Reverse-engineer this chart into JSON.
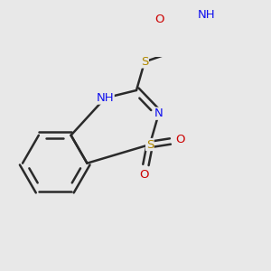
{
  "background": "#e8e8e8",
  "bond_color": "#2a2a2a",
  "bond_lw": 1.8,
  "atom_colors": {
    "N": "#1010ee",
    "O": "#cc0000",
    "S": "#b08800",
    "F": "#cc00cc",
    "C": "#2a2a2a"
  },
  "font_size": 9.5,
  "figsize": [
    3.0,
    3.0
  ],
  "dpi": 100
}
